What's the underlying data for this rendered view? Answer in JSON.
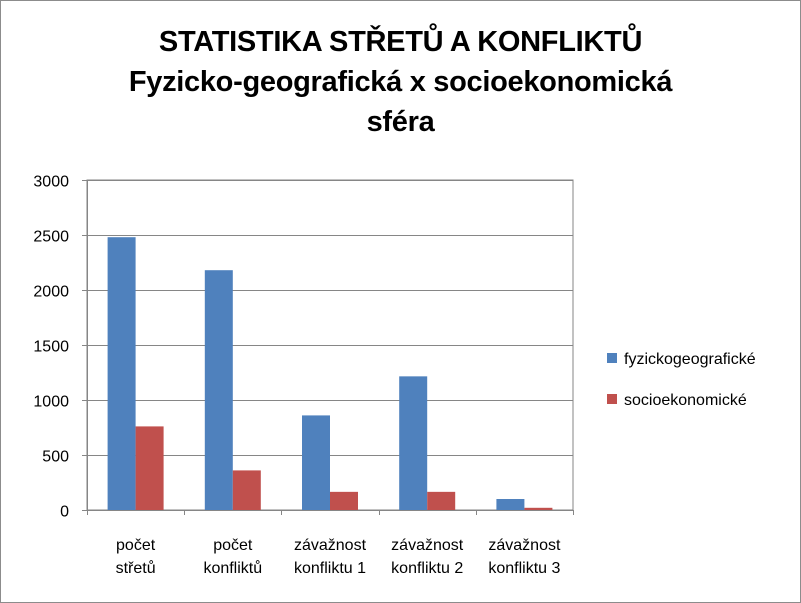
{
  "chart_data": {
    "type": "bar",
    "title_lines": [
      "STATISTIKA STŘETŮ A KONFLIKTŮ",
      "Fyzicko-geografická x socioekonomická",
      "sféra"
    ],
    "categories": [
      [
        "počet",
        "střetů"
      ],
      [
        "počet",
        "konfliktů"
      ],
      [
        "závažnost",
        "konfliktu 1"
      ],
      [
        "závažnost",
        "konfliktu 2"
      ],
      [
        "závažnost",
        "konfliktu 3"
      ]
    ],
    "series": [
      {
        "name": "fyzickogeografické",
        "color": "#4f81bd",
        "values": [
          2480,
          2180,
          860,
          1215,
          100
        ]
      },
      {
        "name": "socioekonomické",
        "color": "#c0504d",
        "values": [
          760,
          360,
          165,
          165,
          20
        ]
      }
    ],
    "ylim": [
      0,
      3000
    ],
    "yticks": [
      0,
      500,
      1000,
      1500,
      2000,
      2500,
      3000
    ],
    "grid": true,
    "legend_position": "right"
  }
}
